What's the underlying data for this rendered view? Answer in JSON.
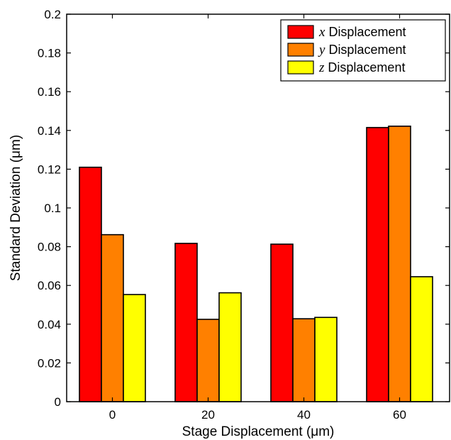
{
  "chart_data": {
    "type": "bar",
    "categories": [
      "0",
      "20",
      "40",
      "60"
    ],
    "series": [
      {
        "name": "x Displacement",
        "var": "x",
        "label": "Displacement",
        "color": "#ff0000",
        "values": [
          0.121,
          0.0817,
          0.0813,
          0.1415
        ]
      },
      {
        "name": "y Displacement",
        "var": "y",
        "label": "Displacement",
        "color": "#ff8000",
        "values": [
          0.0862,
          0.0425,
          0.0428,
          0.1422
        ]
      },
      {
        "name": "z Displacement",
        "var": "z",
        "label": "Displacement",
        "color": "#ffff00",
        "values": [
          0.0553,
          0.0562,
          0.0435,
          0.0645
        ]
      }
    ],
    "xlabel": "Stage Displacement (μm)",
    "ylabel": "Standard Deviation (μm)",
    "ylim": [
      0,
      0.2
    ],
    "yticks": [
      "0",
      "0.02",
      "0.04",
      "0.06",
      "0.08",
      "0.1",
      "0.12",
      "0.14",
      "0.16",
      "0.18",
      "0.2"
    ],
    "legend_position": "top-right",
    "grid": false
  }
}
